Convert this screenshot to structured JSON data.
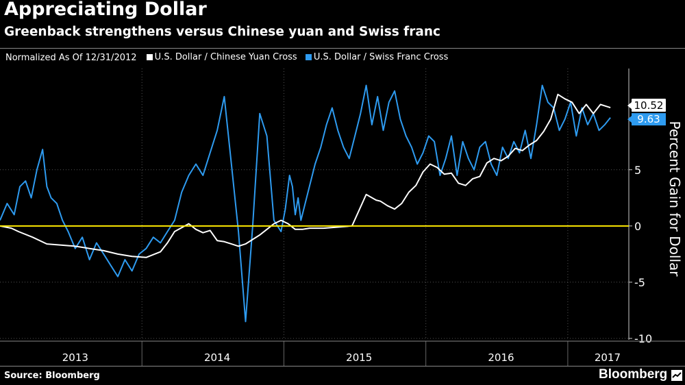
{
  "header": {
    "title": "Appreciating Dollar",
    "subtitle": "Greenback strengthens versus Chinese yuan and Swiss franc"
  },
  "legend": {
    "note": "Normalized As Of 12/31/2012",
    "items": [
      {
        "label": "U.S. Dollar / Chinese Yuan Cross",
        "color": "#ffffff"
      },
      {
        "label": "U.S. Dollar / Swiss Franc Cross",
        "color": "#2e9bf0"
      }
    ]
  },
  "footer": {
    "source": "Source: Bloomberg",
    "brand": "Bloomberg"
  },
  "chart_data": {
    "type": "line",
    "title": "Appreciating Dollar",
    "subtitle": "Greenback strengthens versus Chinese yuan and Swiss franc",
    "ylabel": "Percent Gain for Dollar",
    "xlabel": "",
    "ylim": [
      -10,
      14
    ],
    "xlim": [
      2012.92,
      2017.35
    ],
    "y_ticks": [
      -10,
      -5,
      0,
      5
    ],
    "x_tick_labels": [
      "2013",
      "2014",
      "2015",
      "2016",
      "2017"
    ],
    "x_tick_label_positions": [
      2013.45,
      2014.45,
      2015.45,
      2016.45,
      2017.2
    ],
    "x_dividers": [
      2013.92,
      2014.92,
      2015.92,
      2016.92
    ],
    "grid": true,
    "legend_position": "top-left",
    "reference_line": {
      "y": 0,
      "color": "#ffea00"
    },
    "end_labels": [
      {
        "series": "U.S. Dollar / Chinese Yuan Cross",
        "value": "10.52"
      },
      {
        "series": "U.S. Dollar / Swiss Franc Cross",
        "value": "9.63"
      }
    ],
    "series": [
      {
        "name": "U.S. Dollar / Chinese Yuan Cross",
        "color": "#ffffff",
        "x": [
          2012.92,
          2013.0,
          2013.05,
          2013.15,
          2013.25,
          2013.35,
          2013.45,
          2013.55,
          2013.65,
          2013.75,
          2013.85,
          2013.95,
          2014.05,
          2014.1,
          2014.15,
          2014.25,
          2014.3,
          2014.35,
          2014.4,
          2014.45,
          2014.5,
          2014.55,
          2014.6,
          2014.65,
          2014.7,
          2014.75,
          2014.8,
          2014.85,
          2014.9,
          2014.95,
          2015.0,
          2015.05,
          2015.1,
          2015.2,
          2015.3,
          2015.4,
          2015.5,
          2015.57,
          2015.6,
          2015.65,
          2015.7,
          2015.75,
          2015.8,
          2015.85,
          2015.9,
          2015.95,
          2016.0,
          2016.05,
          2016.1,
          2016.15,
          2016.2,
          2016.25,
          2016.3,
          2016.35,
          2016.4,
          2016.45,
          2016.5,
          2016.55,
          2016.6,
          2016.65,
          2016.7,
          2016.75,
          2016.8,
          2016.85,
          2016.9,
          2016.95,
          2017.0,
          2017.05,
          2017.1,
          2017.15,
          2017.22
        ],
        "values": [
          0.0,
          -0.2,
          -0.5,
          -1.0,
          -1.6,
          -1.7,
          -1.8,
          -2.0,
          -2.2,
          -2.5,
          -2.7,
          -2.8,
          -2.3,
          -1.5,
          -0.5,
          0.2,
          -0.3,
          -0.6,
          -0.4,
          -1.3,
          -1.4,
          -1.6,
          -1.8,
          -1.6,
          -1.2,
          -0.8,
          -0.3,
          0.2,
          0.5,
          0.2,
          -0.3,
          -0.3,
          -0.2,
          -0.2,
          -0.1,
          0.0,
          2.8,
          2.3,
          2.2,
          1.8,
          1.5,
          2.0,
          3.0,
          3.6,
          4.8,
          5.5,
          5.2,
          4.6,
          4.7,
          3.8,
          3.6,
          4.2,
          4.4,
          5.6,
          6.0,
          5.8,
          6.2,
          6.9,
          6.7,
          7.2,
          7.6,
          8.4,
          9.5,
          11.7,
          11.3,
          11.0,
          10.0,
          10.8,
          10.0,
          10.8,
          10.52
        ]
      },
      {
        "name": "U.S. Dollar / Swiss Franc Cross",
        "color": "#2e9bf0",
        "x": [
          2012.92,
          2012.97,
          2013.02,
          2013.06,
          2013.1,
          2013.14,
          2013.18,
          2013.22,
          2013.25,
          2013.28,
          2013.32,
          2013.36,
          2013.4,
          2013.45,
          2013.5,
          2013.55,
          2013.6,
          2013.65,
          2013.7,
          2013.75,
          2013.8,
          2013.85,
          2013.9,
          2013.95,
          2014.0,
          2014.05,
          2014.1,
          2014.15,
          2014.2,
          2014.25,
          2014.3,
          2014.35,
          2014.4,
          2014.45,
          2014.5,
          2014.55,
          2014.6,
          2014.65,
          2014.7,
          2014.75,
          2014.8,
          2014.85,
          2014.9,
          2014.93,
          2014.96,
          2014.98,
          2015.0,
          2015.02,
          2015.04,
          2015.07,
          2015.1,
          2015.14,
          2015.18,
          2015.22,
          2015.26,
          2015.3,
          2015.34,
          2015.38,
          2015.42,
          2015.46,
          2015.5,
          2015.54,
          2015.58,
          2015.62,
          2015.66,
          2015.7,
          2015.74,
          2015.78,
          2015.82,
          2015.86,
          2015.9,
          2015.94,
          2015.98,
          2016.02,
          2016.06,
          2016.1,
          2016.14,
          2016.18,
          2016.22,
          2016.26,
          2016.3,
          2016.34,
          2016.38,
          2016.42,
          2016.46,
          2016.5,
          2016.54,
          2016.58,
          2016.62,
          2016.66,
          2016.7,
          2016.74,
          2016.78,
          2016.82,
          2016.86,
          2016.9,
          2016.94,
          2016.98,
          2017.02,
          2017.06,
          2017.1,
          2017.14,
          2017.18,
          2017.22
        ],
        "values": [
          0.5,
          2.0,
          1.0,
          3.5,
          4.0,
          2.5,
          5.0,
          6.8,
          3.5,
          2.5,
          2.0,
          0.5,
          -0.5,
          -2.0,
          -1.0,
          -3.0,
          -1.5,
          -2.5,
          -3.5,
          -4.5,
          -3.0,
          -4.0,
          -2.5,
          -2.0,
          -1.0,
          -1.5,
          -0.5,
          0.5,
          3.0,
          4.5,
          5.5,
          4.5,
          6.5,
          8.5,
          11.5,
          5.5,
          -0.5,
          -8.5,
          0.0,
          10.0,
          8.0,
          0.5,
          -0.5,
          1.5,
          4.5,
          3.5,
          1.0,
          2.5,
          0.5,
          2.0,
          3.5,
          5.5,
          7.0,
          9.0,
          10.5,
          8.5,
          7.0,
          6.0,
          8.0,
          10.0,
          12.5,
          9.0,
          11.5,
          8.5,
          11.0,
          12.0,
          9.5,
          8.0,
          7.0,
          5.5,
          6.5,
          8.0,
          7.5,
          4.5,
          6.0,
          8.0,
          4.5,
          7.5,
          6.0,
          5.0,
          7.0,
          7.5,
          5.5,
          4.5,
          7.0,
          6.0,
          7.5,
          6.5,
          8.5,
          6.0,
          9.0,
          12.5,
          11.0,
          10.5,
          8.5,
          9.5,
          11.0,
          8.0,
          10.5,
          9.0,
          10.0,
          8.5,
          9.0,
          9.63
        ]
      }
    ]
  }
}
